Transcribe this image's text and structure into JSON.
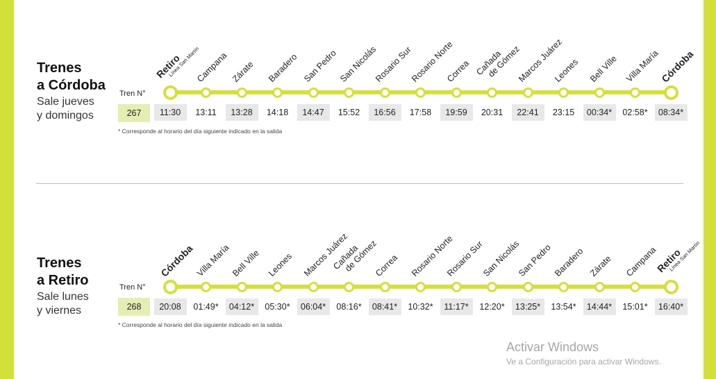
{
  "colors": {
    "accent": "#d4e03a",
    "shade": "#e8e8e8",
    "train_number_bg": "#e6edb2"
  },
  "sections": [
    {
      "title_line1": "Trenes",
      "title_line2": "a Córdoba",
      "subtitle_line1": "Sale jueves",
      "subtitle_line2": "y domingos",
      "tren_label": "Tren N°",
      "tren_number": "267",
      "footnote": "* Corresponde al horario del día siguiente indicado en la salida",
      "stations": [
        {
          "name": "Retiro",
          "sub": "Línea San Martín",
          "time": "11:30",
          "bold": true
        },
        {
          "name": "Campana",
          "time": "13:11"
        },
        {
          "name": "Zárate",
          "time": "13:28"
        },
        {
          "name": "Baradero",
          "time": "14:18"
        },
        {
          "name": "San Pedro",
          "time": "14:47"
        },
        {
          "name": "San Nicolás",
          "time": "15:52"
        },
        {
          "name": "Rosario Sur",
          "time": "16:56"
        },
        {
          "name": "Rosario Norte",
          "time": "17:58"
        },
        {
          "name": "Correa",
          "time": "19:59"
        },
        {
          "name": "Cañada",
          "name2": "de Gómez",
          "time": "20:31"
        },
        {
          "name": "Marcos Juárez",
          "time": "22:41"
        },
        {
          "name": "Leones",
          "time": "23:15"
        },
        {
          "name": "Bell Ville",
          "time": "00:34*"
        },
        {
          "name": "Villa María",
          "time": "02:58*"
        },
        {
          "name": "Córdoba",
          "time": "08:34*",
          "bold": true
        }
      ]
    },
    {
      "title_line1": "Trenes",
      "title_line2": "a Retiro",
      "subtitle_line1": "Sale lunes",
      "subtitle_line2": "y viernes",
      "tren_label": "Tren N°",
      "tren_number": "268",
      "footnote": "* Corresponde al horario del día siguiente indicado en la salida",
      "stations": [
        {
          "name": "Córdoba",
          "time": "20:08",
          "bold": true
        },
        {
          "name": "Villa María",
          "time": "01:49*"
        },
        {
          "name": "Bell Ville",
          "time": "04:12*"
        },
        {
          "name": "Leones",
          "time": "05:30*"
        },
        {
          "name": "Marcos Juárez",
          "time": "06:04*"
        },
        {
          "name": "Cañada",
          "name2": "de Gómez",
          "time": "08:16*"
        },
        {
          "name": "Correa",
          "time": "08:41*"
        },
        {
          "name": "Rosario Norte",
          "time": "10:32*"
        },
        {
          "name": "Rosario Sur",
          "time": "11:17*"
        },
        {
          "name": "San Nicolás",
          "time": "12:20*"
        },
        {
          "name": "San Pedro",
          "time": "13:25*"
        },
        {
          "name": "Baradero",
          "time": "13:54*"
        },
        {
          "name": "Zárate",
          "time": "14:44*"
        },
        {
          "name": "Campana",
          "time": "15:01*"
        },
        {
          "name": "Retiro",
          "sub": "Línea San Martín",
          "time": "16:40*",
          "bold": true
        }
      ]
    }
  ],
  "watermark": {
    "title": "Activar Windows",
    "subtitle": "Ve a Configuración para activar Windows."
  }
}
